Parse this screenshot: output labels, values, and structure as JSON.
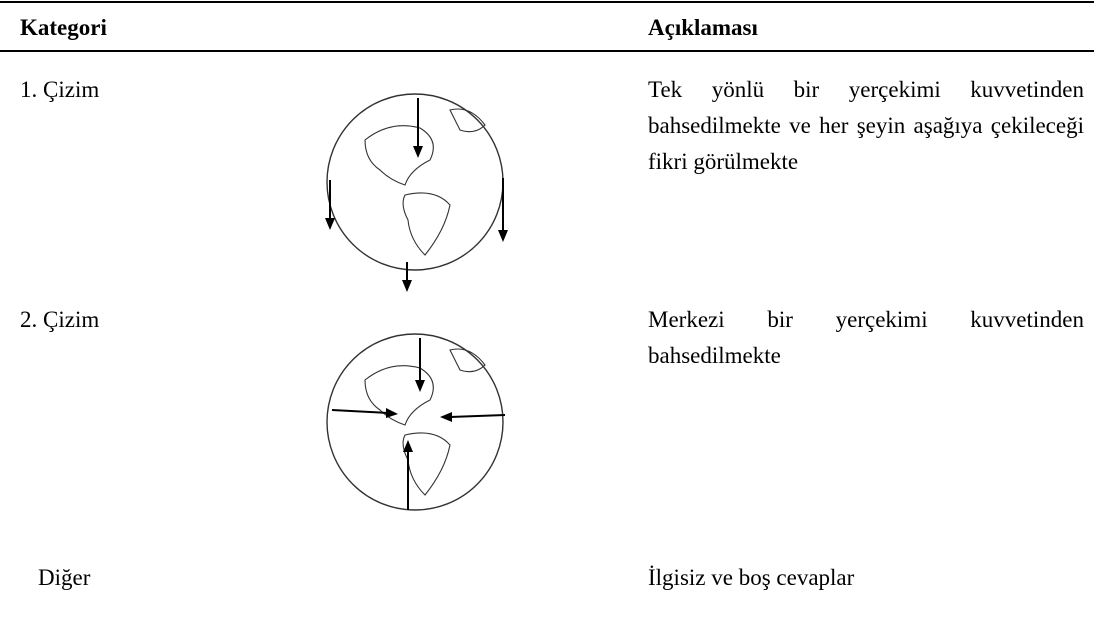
{
  "table": {
    "header": [
      "Kategori",
      "Açıklaması"
    ],
    "rows": [
      [
        "1. Çizim",
        "Tek yönlü bir yerçekimi kuvvetinden bahsedilmekte ve her şeyin aşağıya çekileceği fikri görülmekte"
      ],
      [
        "2. Çizim",
        "Merkezi bir yerçekimi kuvvetinden bahsedilmekte"
      ],
      [
        "Diğer",
        "İlgisiz ve boş cevaplar"
      ]
    ]
  }
}
